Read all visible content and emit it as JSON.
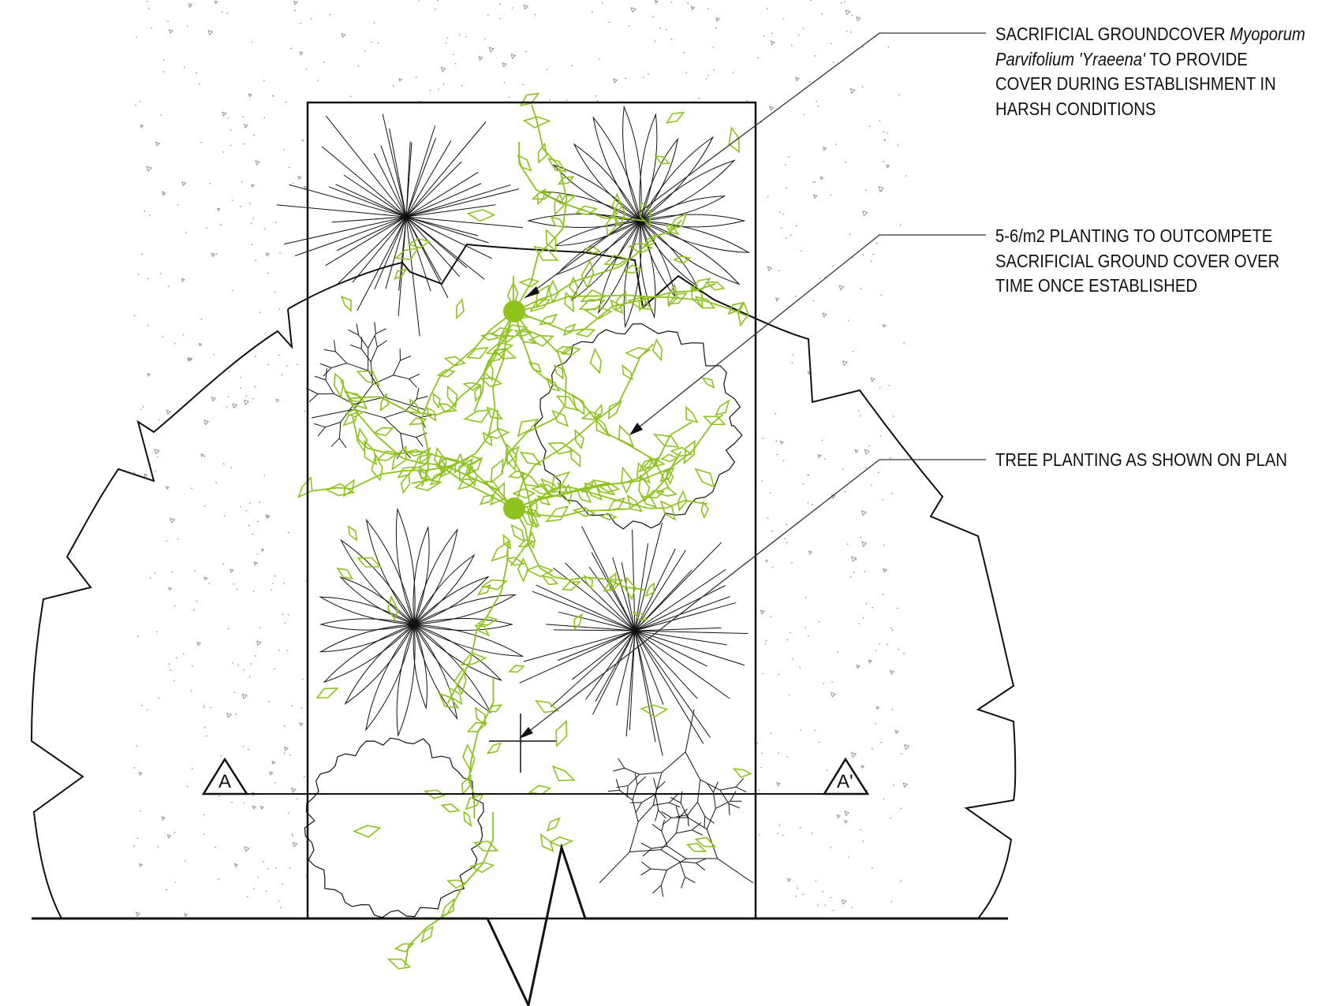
{
  "notes": {
    "groundcover": {
      "text_before": "SACRIFICIAL GROUNDCOVER ",
      "species_italic_1": "Myoporum",
      "species_italic_2": "Parvifolium 'Yraeena'",
      "line2_rest": " TO PROVIDE",
      "line3": "COVER DURING ESTABLISHMENT IN",
      "line4": "HARSH CONDITIONS"
    },
    "planting": {
      "line1": "5-6/m2 PLANTING TO OUTCOMPETE",
      "line2": "SACRIFICIAL GROUND COVER OVER",
      "line3": "TIME ONCE ESTABLISHED"
    },
    "tree": {
      "line1": "TREE PLANTING AS SHOWN ON PLAN"
    }
  },
  "section_markers": {
    "left": "A",
    "right": "A'"
  },
  "colors": {
    "groundcover_green": "#8dc21f",
    "linework": "#111111",
    "paving_speckle": "#8a8a8a"
  }
}
